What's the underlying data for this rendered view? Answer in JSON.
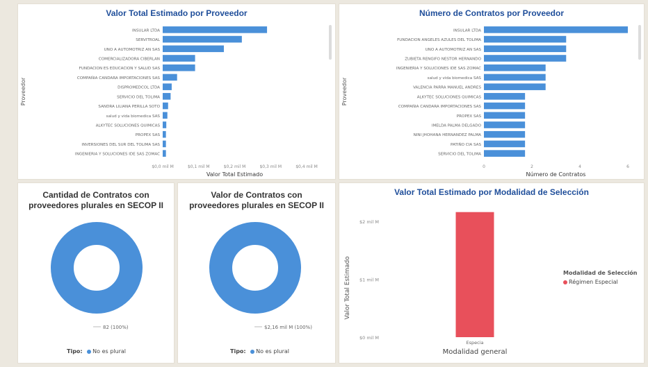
{
  "chart_data": [
    {
      "type": "bar",
      "orientation": "horizontal",
      "title": "Valor Total Estimado por Proveedor",
      "xlabel": "Valor Total Estimado",
      "ylabel": "Proveedor",
      "categories": [
        "INSULAR LTDA",
        "SERVITROAL",
        "UNO A AUTOMOTRIZ AN SAS",
        "COMERCIALIZADORA CIBERLAN",
        "FUNDACION ES EDUCACION Y SALUD SAS",
        "COMPAÑIA CANDARA IMPORTACIONES SAS",
        "DISPROMEDCOL LTDA",
        "SERVICIO DEL TOLIMA",
        "SANDRA LILIANA PERILLA SOTO",
        "salud y vida biomedica SAS",
        "ALKYTEC SOLUCIONES QUIMICAS",
        "PROPEX SAS",
        "INVERSIONES DEL SUR DEL TOLIMA SAS",
        "INGENIERIA Y SOLUCIONES IDE SAS ZOMAC"
      ],
      "values": [
        0.29,
        0.22,
        0.17,
        0.09,
        0.09,
        0.04,
        0.025,
        0.022,
        0.015,
        0.013,
        0.01,
        0.009,
        0.009,
        0.009
      ],
      "xlim": [
        0,
        0.4
      ],
      "ticks": [
        "$0,0 mil M",
        "$0,1 mil M",
        "$0,2 mil M",
        "$0,3 mil M",
        "$0,4 mil M"
      ],
      "color": "#4a90d9"
    },
    {
      "type": "bar",
      "orientation": "horizontal",
      "title": "Número de Contratos por Proveedor",
      "xlabel": "Número de Contratos",
      "ylabel": "Proveedor",
      "categories": [
        "INSULAR LTDA",
        "FUNDACION ANGELES AZULES DEL TOLIMA",
        "UNO A AUTOMOTRIZ AN SAS",
        "ZUBIETA RENGIFO NESTOR HERNANDO",
        "INGENIERIA Y SOLUCIONES IDE SAS ZOMAC",
        "salud y vida biomedica SAS",
        "VALENCIA PARRA MANUEL ANDRES",
        "ALKYTEC SOLUCIONES QUIMICAS",
        "COMPAÑIA CANDARA IMPORTACIONES SAS",
        "PROPEX SAS",
        "IMELDA PALMA DELGADO",
        "NINI JHOHANA HERNANDEZ PALMA",
        "PATIÑO CIA SAS",
        "SERVICIO DEL TOLIMA"
      ],
      "values": [
        7,
        4,
        4,
        4,
        3,
        3,
        3,
        2,
        2,
        2,
        2,
        2,
        2,
        2
      ],
      "xlim": [
        0,
        7
      ],
      "ticks": [
        "0",
        "2",
        "4",
        "6"
      ],
      "color": "#4a90d9"
    },
    {
      "type": "pie",
      "donut": true,
      "title": "Cantidad de Contratos con proveedores plurales en SECOP II",
      "slices": [
        {
          "label": "No es plural",
          "value": 82,
          "percent": 100
        }
      ],
      "data_label": "82 (100%)",
      "legend_title": "Tipo:",
      "color": "#4a90d9"
    },
    {
      "type": "pie",
      "donut": true,
      "title": "Valor de Contratos con proveedores plurales en SECOP II",
      "slices": [
        {
          "label": "No es plural",
          "value": 2.16,
          "percent": 100
        }
      ],
      "data_label": "$2,16 mil M (100%)",
      "legend_title": "Tipo:",
      "color": "#4a90d9"
    },
    {
      "type": "bar",
      "title": "Valor Total Estimado por Modalidad de Selección",
      "xlabel": "Modalidad general",
      "ylabel": "Valor Total Estimado",
      "categories": [
        "Especia"
      ],
      "values": [
        2.16
      ],
      "ylim": [
        0,
        2.3
      ],
      "ticks": [
        "$0 mil M",
        "$1 mil M",
        "$2 mil M"
      ],
      "legend_title": "Modalidad de Selección",
      "legend": [
        "Régimen Especial"
      ],
      "color": "#e8505b"
    }
  ]
}
